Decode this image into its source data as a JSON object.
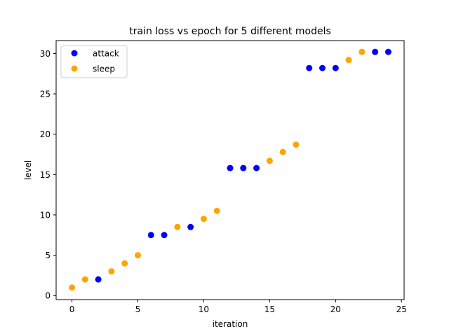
{
  "chart_data": {
    "type": "scatter",
    "title": "train loss vs epoch for 5 different models",
    "xlabel": "iteration",
    "ylabel": "level",
    "xlim": [
      -1.2,
      25.2
    ],
    "ylim": [
      -0.5,
      31.6
    ],
    "xticks": [
      0,
      5,
      10,
      15,
      20,
      25
    ],
    "yticks": [
      0,
      5,
      10,
      15,
      20,
      25,
      30
    ],
    "legend_position": "top-left",
    "series": [
      {
        "name": "attack",
        "color": "#0000ff",
        "points": [
          [
            2,
            2
          ],
          [
            6,
            7.5
          ],
          [
            7,
            7.5
          ],
          [
            9,
            8.5
          ],
          [
            12,
            15.8
          ],
          [
            13,
            15.8
          ],
          [
            14,
            15.8
          ],
          [
            18,
            28.2
          ],
          [
            19,
            28.2
          ],
          [
            20,
            28.2
          ],
          [
            23,
            30.2
          ],
          [
            24,
            30.2
          ]
        ]
      },
      {
        "name": "sleep",
        "color": "#ffa500",
        "points": [
          [
            0,
            1
          ],
          [
            1,
            2
          ],
          [
            3,
            3
          ],
          [
            4,
            4
          ],
          [
            5,
            5
          ],
          [
            8,
            8.5
          ],
          [
            10,
            9.5
          ],
          [
            11,
            10.5
          ],
          [
            15,
            16.7
          ],
          [
            16,
            17.8
          ],
          [
            17,
            18.7
          ],
          [
            21,
            29.2
          ],
          [
            22,
            30.2
          ]
        ]
      }
    ]
  }
}
